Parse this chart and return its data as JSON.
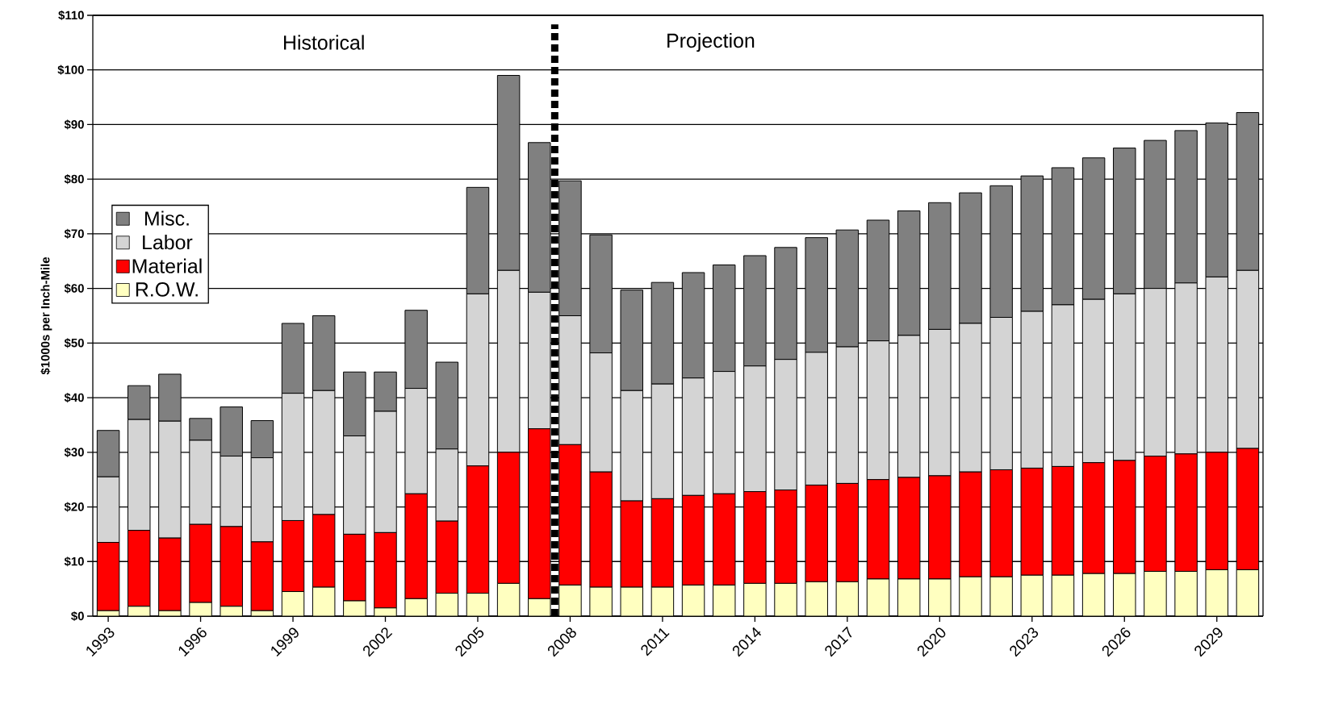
{
  "chart_data": {
    "type": "bar",
    "stacked": true,
    "ylabel": "$1000s per Inch-Mile",
    "x": [
      1993,
      1994,
      1995,
      1996,
      1997,
      1998,
      1999,
      2000,
      2001,
      2002,
      2003,
      2004,
      2005,
      2006,
      2007,
      2008,
      2009,
      2010,
      2011,
      2012,
      2013,
      2014,
      2015,
      2016,
      2017,
      2018,
      2019,
      2020,
      2021,
      2022,
      2023,
      2024,
      2025,
      2026,
      2027,
      2028,
      2029,
      2030
    ],
    "xlim": [
      1992.5,
      2030.5
    ],
    "xticks": [
      1993,
      1996,
      1999,
      2002,
      2005,
      2008,
      2011,
      2014,
      2017,
      2020,
      2023,
      2026,
      2029
    ],
    "ylim": [
      0,
      110
    ],
    "yticks": [
      {
        "value": 0,
        "label": "$0"
      },
      {
        "value": 10,
        "label": "$10"
      },
      {
        "value": 20,
        "label": "$20"
      },
      {
        "value": 30,
        "label": "$30"
      },
      {
        "value": 40,
        "label": "$40"
      },
      {
        "value": 50,
        "label": "$50"
      },
      {
        "value": 60,
        "label": "$60"
      },
      {
        "value": 70,
        "label": "$70"
      },
      {
        "value": 80,
        "label": "$80"
      },
      {
        "value": 90,
        "label": "$90"
      },
      {
        "value": 100,
        "label": "$100"
      },
      {
        "value": 110,
        "label": "$110"
      }
    ],
    "grid": "y",
    "legend": "left",
    "series": [
      {
        "name": "R.O.W.",
        "color": "#ffffc0",
        "values": [
          1,
          1.8,
          1,
          2.5,
          1.8,
          1,
          4.5,
          5.3,
          2.8,
          1.5,
          3.2,
          4.2,
          4.2,
          6,
          3.2,
          5.7,
          5.3,
          5.3,
          5.3,
          5.7,
          5.7,
          6,
          6,
          6.3,
          6.3,
          6.8,
          6.8,
          6.8,
          7.2,
          7.2,
          7.5,
          7.5,
          7.8,
          7.8,
          8.2,
          8.2,
          8.5,
          8.5
        ]
      },
      {
        "name": "Material",
        "color": "#ff0000",
        "values": [
          12.5,
          13.9,
          13.3,
          14.3,
          14.6,
          12.6,
          13,
          13.3,
          12.2,
          13.8,
          19.2,
          13.2,
          23.3,
          24,
          31.1,
          25.7,
          21.1,
          15.8,
          16.2,
          16.4,
          16.7,
          16.8,
          17.1,
          17.7,
          18,
          18.2,
          18.6,
          18.9,
          19.2,
          19.6,
          19.6,
          19.9,
          20.3,
          20.7,
          21.1,
          21.5,
          21.5,
          22.2
        ]
      },
      {
        "name": "Labor",
        "color": "#d4d4d4",
        "values": [
          12,
          20.3,
          21.4,
          15.4,
          12.9,
          15.4,
          23.3,
          22.7,
          18,
          22.2,
          19.3,
          13.2,
          31.5,
          33.3,
          25,
          23.6,
          21.8,
          20.2,
          21,
          21.5,
          22.4,
          23,
          23.9,
          24.3,
          25,
          25.4,
          26,
          26.8,
          27.2,
          27.9,
          28.7,
          29.6,
          29.9,
          30.5,
          30.7,
          31.3,
          32.1,
          32.6
        ]
      },
      {
        "name": "Misc.",
        "color": "#808080",
        "values": [
          8.5,
          6.2,
          8.6,
          4,
          9,
          6.8,
          12.8,
          13.7,
          11.7,
          7.2,
          14.3,
          15.9,
          19.5,
          35.7,
          27.4,
          24.7,
          21.6,
          18.4,
          18.6,
          19.3,
          19.5,
          20.2,
          20.5,
          21,
          21.4,
          22.1,
          22.8,
          23.2,
          23.9,
          24.1,
          24.8,
          25.1,
          25.9,
          26.7,
          27.1,
          27.9,
          28.2,
          28.9
        ]
      }
    ],
    "ref_lines": [
      {
        "axis": "x",
        "value": 2007.5,
        "color": "#000000",
        "line_style": "dashed"
      }
    ],
    "annotations": [
      "Historical",
      "Projection"
    ]
  }
}
